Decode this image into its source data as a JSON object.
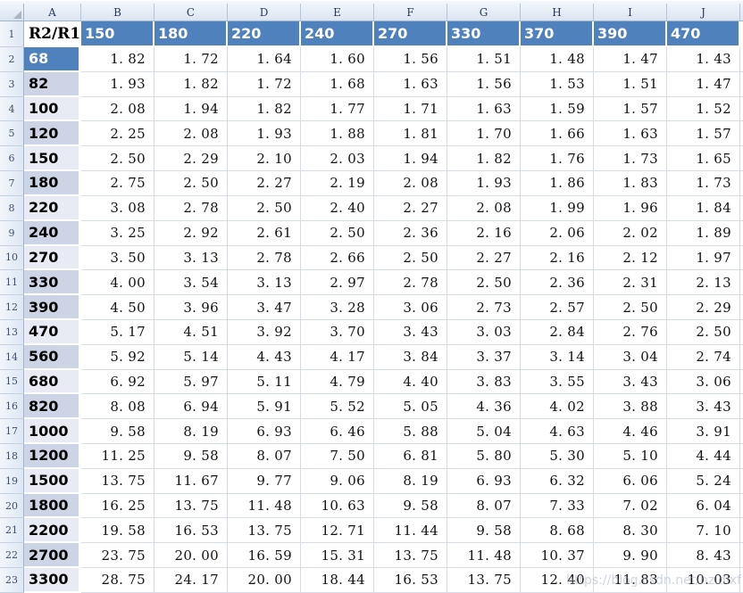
{
  "watermark": {
    "text": "https://blog.csdn.net/hzldlxf"
  },
  "colors": {
    "header_blue": "#4f81bd",
    "band_dark": "#ccd4e6",
    "band_light": "#e8ebf4",
    "grid_line": "#d6dde9"
  },
  "grid": {
    "column_letters": [
      "A",
      "B",
      "C",
      "D",
      "E",
      "F",
      "G",
      "H",
      "I",
      "J"
    ],
    "row_numbers": [
      "1",
      "2",
      "3",
      "4",
      "5",
      "6",
      "7",
      "8",
      "9",
      "10",
      "11",
      "12",
      "13",
      "14",
      "15",
      "16",
      "17",
      "18",
      "19",
      "20",
      "21",
      "22",
      "23"
    ]
  },
  "sheet": {
    "corner_label": "R2/R1",
    "col_headers": [
      "150",
      "180",
      "220",
      "240",
      "270",
      "330",
      "370",
      "390",
      "470"
    ],
    "rows": [
      {
        "label": "68",
        "shade": "blue",
        "values": [
          "1.82",
          "1.72",
          "1.64",
          "1.60",
          "1.56",
          "1.51",
          "1.48",
          "1.47",
          "1.43"
        ]
      },
      {
        "label": "82",
        "shade": "dark",
        "values": [
          "1.93",
          "1.82",
          "1.72",
          "1.68",
          "1.63",
          "1.56",
          "1.53",
          "1.51",
          "1.47"
        ]
      },
      {
        "label": "100",
        "shade": "light",
        "values": [
          "2.08",
          "1.94",
          "1.82",
          "1.77",
          "1.71",
          "1.63",
          "1.59",
          "1.57",
          "1.52"
        ]
      },
      {
        "label": "120",
        "shade": "dark",
        "values": [
          "2.25",
          "2.08",
          "1.93",
          "1.88",
          "1.81",
          "1.70",
          "1.66",
          "1.63",
          "1.57"
        ]
      },
      {
        "label": "150",
        "shade": "light",
        "values": [
          "2.50",
          "2.29",
          "2.10",
          "2.03",
          "1.94",
          "1.82",
          "1.76",
          "1.73",
          "1.65"
        ]
      },
      {
        "label": "180",
        "shade": "dark",
        "values": [
          "2.75",
          "2.50",
          "2.27",
          "2.19",
          "2.08",
          "1.93",
          "1.86",
          "1.83",
          "1.73"
        ]
      },
      {
        "label": "220",
        "shade": "light",
        "values": [
          "3.08",
          "2.78",
          "2.50",
          "2.40",
          "2.27",
          "2.08",
          "1.99",
          "1.96",
          "1.84"
        ]
      },
      {
        "label": "240",
        "shade": "dark",
        "values": [
          "3.25",
          "2.92",
          "2.61",
          "2.50",
          "2.36",
          "2.16",
          "2.06",
          "2.02",
          "1.89"
        ]
      },
      {
        "label": "270",
        "shade": "light",
        "values": [
          "3.50",
          "3.13",
          "2.78",
          "2.66",
          "2.50",
          "2.27",
          "2.16",
          "2.12",
          "1.97"
        ]
      },
      {
        "label": "330",
        "shade": "dark",
        "values": [
          "4.00",
          "3.54",
          "3.13",
          "2.97",
          "2.78",
          "2.50",
          "2.36",
          "2.31",
          "2.13"
        ]
      },
      {
        "label": "390",
        "shade": "dark",
        "values": [
          "4.50",
          "3.96",
          "3.47",
          "3.28",
          "3.06",
          "2.73",
          "2.57",
          "2.50",
          "2.29"
        ]
      },
      {
        "label": "470",
        "shade": "light",
        "values": [
          "5.17",
          "4.51",
          "3.92",
          "3.70",
          "3.43",
          "3.03",
          "2.84",
          "2.76",
          "2.50"
        ]
      },
      {
        "label": "560",
        "shade": "dark",
        "values": [
          "5.92",
          "5.14",
          "4.43",
          "4.17",
          "3.84",
          "3.37",
          "3.14",
          "3.04",
          "2.74"
        ]
      },
      {
        "label": "680",
        "shade": "light",
        "values": [
          "6.92",
          "5.97",
          "5.11",
          "4.79",
          "4.40",
          "3.83",
          "3.55",
          "3.43",
          "3.06"
        ]
      },
      {
        "label": "820",
        "shade": "dark",
        "values": [
          "8.08",
          "6.94",
          "5.91",
          "5.52",
          "5.05",
          "4.36",
          "4.02",
          "3.88",
          "3.43"
        ]
      },
      {
        "label": "1000",
        "shade": "light",
        "values": [
          "9.58",
          "8.19",
          "6.93",
          "6.46",
          "5.88",
          "5.04",
          "4.63",
          "4.46",
          "3.91"
        ]
      },
      {
        "label": "1200",
        "shade": "dark",
        "values": [
          "11.25",
          "9.58",
          "8.07",
          "7.50",
          "6.81",
          "5.80",
          "5.30",
          "5.10",
          "4.44"
        ]
      },
      {
        "label": "1500",
        "shade": "light",
        "values": [
          "13.75",
          "11.67",
          "9.77",
          "9.06",
          "8.19",
          "6.93",
          "6.32",
          "6.06",
          "5.24"
        ]
      },
      {
        "label": "1800",
        "shade": "dark",
        "values": [
          "16.25",
          "13.75",
          "11.48",
          "10.63",
          "9.58",
          "8.07",
          "7.33",
          "7.02",
          "6.04"
        ]
      },
      {
        "label": "2200",
        "shade": "light",
        "values": [
          "19.58",
          "16.53",
          "13.75",
          "12.71",
          "11.44",
          "9.58",
          "8.68",
          "8.30",
          "7.10"
        ]
      },
      {
        "label": "2700",
        "shade": "dark",
        "values": [
          "23.75",
          "20.00",
          "16.59",
          "15.31",
          "13.75",
          "11.48",
          "10.37",
          "9.90",
          "8.43"
        ]
      },
      {
        "label": "3300",
        "shade": "light",
        "values": [
          "28.75",
          "24.17",
          "20.00",
          "18.44",
          "16.53",
          "13.75",
          "12.40",
          "11.83",
          "10.03"
        ]
      }
    ]
  }
}
